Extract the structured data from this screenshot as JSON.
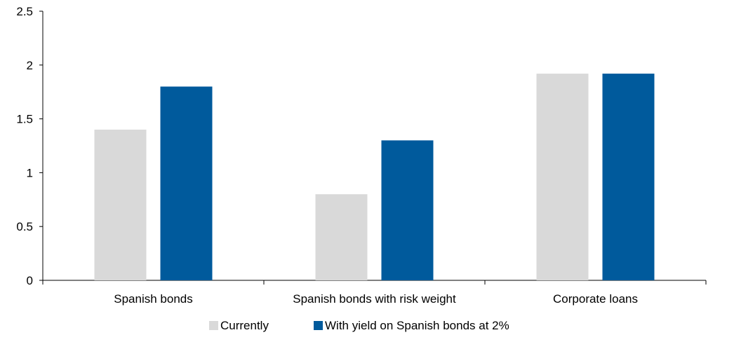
{
  "chart_data": {
    "type": "bar",
    "categories": [
      "Spanish bonds",
      "Spanish bonds with risk weight",
      "Corporate loans"
    ],
    "series": [
      {
        "name": "Currently",
        "values": [
          1.4,
          0.8,
          1.92
        ],
        "color": "#d9d9d9"
      },
      {
        "name": "With yield on Spanish bonds at 2%",
        "values": [
          1.8,
          1.3,
          1.92
        ],
        "color": "#005a9c"
      }
    ],
    "y_ticks": [
      "0",
      "0.5",
      "1",
      "1.5",
      "2",
      "2.5"
    ],
    "ylim": [
      0,
      2.5
    ],
    "grid": false,
    "legend_position": "bottom-center"
  }
}
